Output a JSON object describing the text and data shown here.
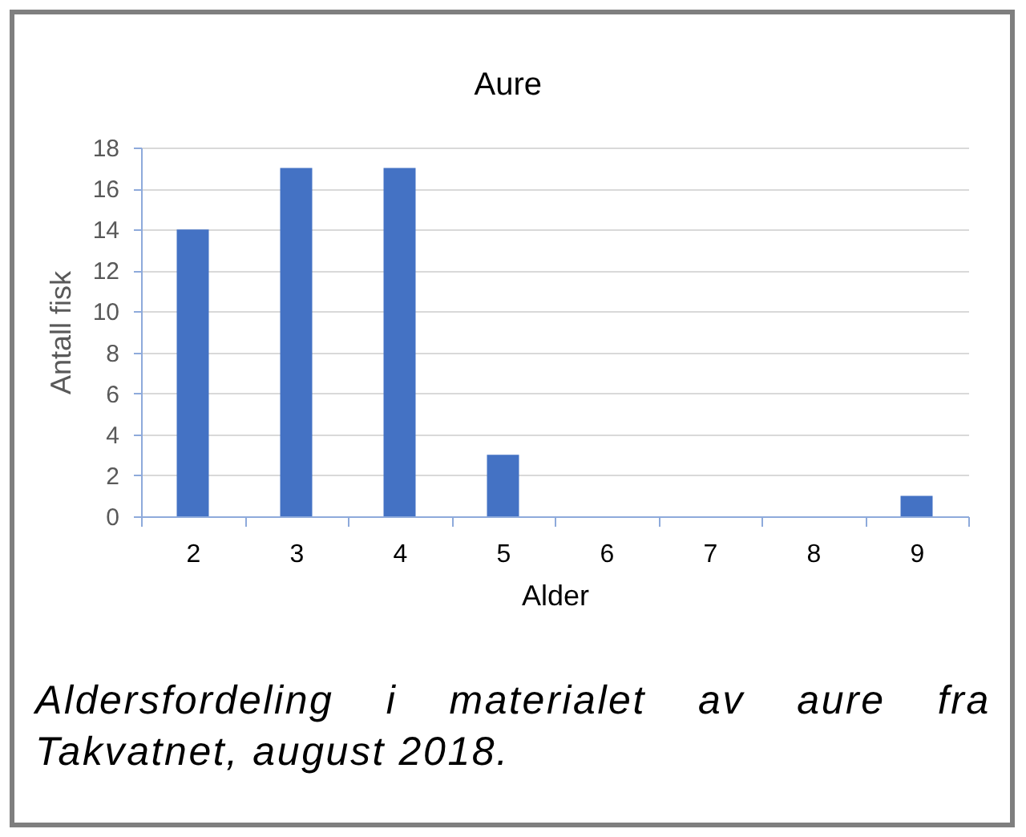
{
  "chart_data": {
    "type": "bar",
    "title": "Aure",
    "xlabel": "Alder",
    "ylabel": "Antall fisk",
    "categories": [
      "2",
      "3",
      "4",
      "5",
      "6",
      "7",
      "8",
      "9"
    ],
    "values": [
      14,
      17,
      17,
      3,
      0,
      0,
      0,
      1
    ],
    "color": "#4472c4",
    "ylim": [
      0,
      18
    ],
    "yticks": [
      0,
      2,
      4,
      6,
      8,
      10,
      12,
      14,
      16,
      18
    ],
    "grid": "y",
    "annotations": [
      "Aldersfordeling i materialet av aure fra Takvatnet, august 2018."
    ]
  }
}
